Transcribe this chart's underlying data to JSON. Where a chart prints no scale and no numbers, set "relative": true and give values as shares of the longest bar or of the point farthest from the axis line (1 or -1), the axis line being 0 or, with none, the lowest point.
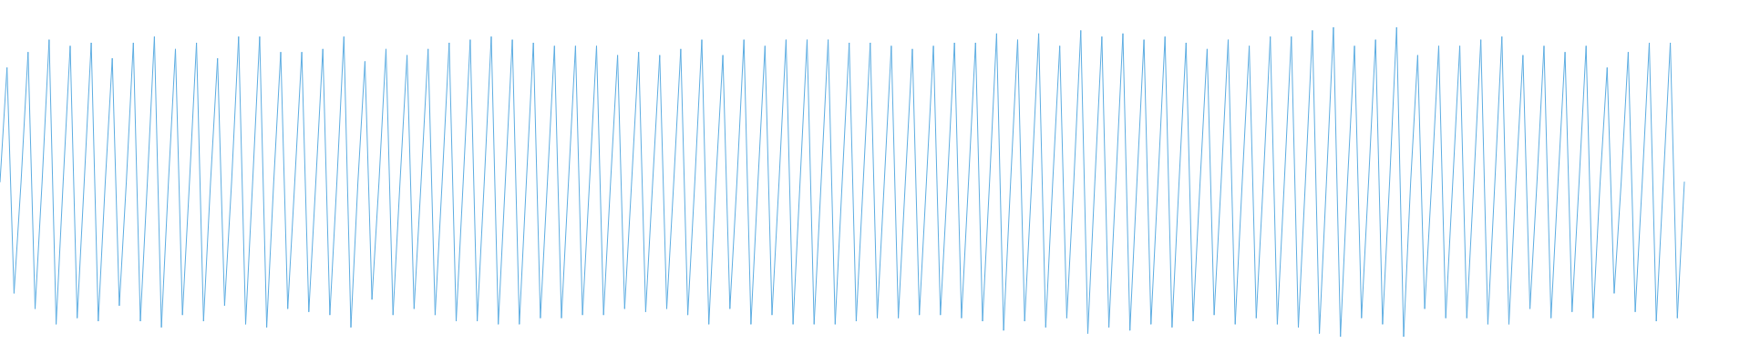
{
  "chart_data": {
    "type": "line",
    "relative": true,
    "line_style": "solid",
    "categories": [
      null,
      null,
      null,
      null,
      null,
      null,
      null,
      null,
      null,
      null,
      null,
      null,
      null,
      null,
      null,
      null,
      null,
      null,
      null,
      null,
      null,
      null,
      null,
      null,
      null,
      null,
      null,
      null,
      null,
      null,
      null,
      null,
      null,
      null,
      null,
      null,
      null,
      null,
      null,
      null,
      null,
      null,
      null,
      null,
      null,
      null,
      null,
      null,
      null,
      null,
      null,
      null,
      null,
      null,
      null,
      null,
      null,
      null,
      null,
      null,
      null,
      null,
      null,
      null,
      null,
      null,
      null,
      null,
      null,
      null,
      null,
      null,
      null,
      null,
      null,
      null,
      null,
      null,
      null,
      null,
      null,
      null,
      null,
      null,
      null,
      null,
      null,
      null,
      null,
      null,
      null,
      null,
      null,
      null,
      null,
      null,
      null,
      null,
      null,
      null,
      null,
      null,
      null,
      null,
      null,
      null,
      null,
      null,
      null,
      null,
      null,
      null,
      null,
      null,
      null,
      null,
      null,
      null,
      null,
      null,
      null,
      null,
      null,
      null,
      null,
      null,
      null,
      null,
      null,
      null,
      null,
      null,
      null,
      null,
      null,
      null,
      null,
      null,
      null,
      null,
      null,
      null,
      null,
      null,
      null,
      null,
      null,
      null,
      null,
      null,
      null,
      null,
      null,
      null,
      null,
      null,
      null,
      null,
      null,
      null,
      null,
      null,
      null,
      null,
      null,
      null,
      null,
      null,
      null,
      null,
      null,
      null,
      null,
      null,
      null,
      null,
      null,
      null,
      null,
      null,
      null,
      null,
      null,
      null,
      null,
      null,
      null,
      null,
      null,
      null,
      null,
      null,
      null,
      null,
      null,
      null,
      null,
      null,
      null,
      null,
      null,
      null,
      null,
      null,
      null,
      null,
      null,
      null,
      null,
      null,
      null,
      null,
      null,
      null,
      null,
      null,
      null,
      null,
      null,
      null,
      null,
      null,
      null,
      null,
      null,
      null,
      null,
      null,
      null,
      null,
      null,
      null,
      null,
      null,
      null,
      null,
      null,
      null,
      null,
      null,
      null
    ],
    "series": [
      {
        "color": "#5dade2",
        "values": [
          0.5,
          0.87,
          0.14,
          0.5,
          0.92,
          0.09,
          0.5,
          0.96,
          0.04,
          0.5,
          0.94,
          0.06,
          0.5,
          0.95,
          0.05,
          0.5,
          0.9,
          0.1,
          0.5,
          0.95,
          0.05,
          0.5,
          0.97,
          0.03,
          0.5,
          0.93,
          0.07,
          0.5,
          0.95,
          0.05,
          0.5,
          0.9,
          0.1,
          0.5,
          0.97,
          0.04,
          0.5,
          0.97,
          0.03,
          0.5,
          0.92,
          0.09,
          0.5,
          0.92,
          0.08,
          0.5,
          0.93,
          0.07,
          0.5,
          0.97,
          0.03,
          0.5,
          0.89,
          0.12,
          0.5,
          0.93,
          0.07,
          0.5,
          0.91,
          0.09,
          0.5,
          0.93,
          0.07,
          0.5,
          0.95,
          0.05,
          0.5,
          0.96,
          0.05,
          0.5,
          0.97,
          0.04,
          0.5,
          0.96,
          0.04,
          0.5,
          0.95,
          0.06,
          0.5,
          0.94,
          0.06,
          0.5,
          0.94,
          0.07,
          0.5,
          0.94,
          0.07,
          0.5,
          0.91,
          0.09,
          0.5,
          0.92,
          0.08,
          0.5,
          0.91,
          0.09,
          0.5,
          0.93,
          0.07,
          0.5,
          0.96,
          0.04,
          0.5,
          0.91,
          0.09,
          0.5,
          0.96,
          0.04,
          0.5,
          0.94,
          0.07,
          0.5,
          0.96,
          0.04,
          0.5,
          0.96,
          0.04,
          0.5,
          0.96,
          0.04,
          0.5,
          0.95,
          0.05,
          0.5,
          0.95,
          0.06,
          0.5,
          0.94,
          0.06,
          0.5,
          0.93,
          0.07,
          0.5,
          0.94,
          0.07,
          0.5,
          0.95,
          0.06,
          0.5,
          0.95,
          0.05,
          0.5,
          0.98,
          0.02,
          0.5,
          0.96,
          0.05,
          0.5,
          0.98,
          0.03,
          0.5,
          0.94,
          0.06,
          0.5,
          0.99,
          0.01,
          0.5,
          0.97,
          0.03,
          0.5,
          0.98,
          0.02,
          0.5,
          0.96,
          0.04,
          0.5,
          0.97,
          0.03,
          0.5,
          0.95,
          0.05,
          0.5,
          0.93,
          0.07,
          0.5,
          0.96,
          0.04,
          0.5,
          0.94,
          0.06,
          0.5,
          0.97,
          0.04,
          0.5,
          0.97,
          0.03,
          0.5,
          0.99,
          0.01,
          0.5,
          1.0,
          0.0,
          0.5,
          0.94,
          0.06,
          0.5,
          0.96,
          0.04,
          0.5,
          1.0,
          0.0,
          0.5,
          0.91,
          0.09,
          0.5,
          0.94,
          0.06,
          0.5,
          0.94,
          0.06,
          0.5,
          0.96,
          0.04,
          0.5,
          0.97,
          0.04,
          0.5,
          0.91,
          0.09,
          0.5,
          0.94,
          0.06,
          0.5,
          0.92,
          0.08,
          0.5,
          0.94,
          0.06,
          0.5,
          0.87,
          0.14,
          0.5,
          0.92,
          0.08,
          0.5,
          0.95,
          0.05,
          0.5,
          0.95,
          0.06,
          0.5
        ]
      }
    ]
  }
}
